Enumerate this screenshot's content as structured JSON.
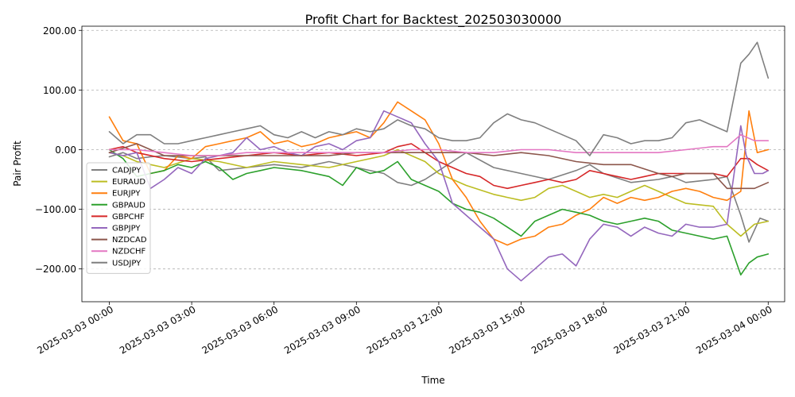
{
  "chart_data": {
    "type": "line",
    "title": "Profit Chart for Backtest_202503030000",
    "xlabel": "Time",
    "ylabel": "Pair Profit",
    "x_unit": "hours since 2025-03-03 00:00",
    "xlim": [
      -1.0,
      24.6
    ],
    "ylim": [
      -255,
      207
    ],
    "grid": "horizontal dashed",
    "legend_position": "lower-left",
    "xticks": [
      {
        "value": 0,
        "label": "2025-03-03 00:00"
      },
      {
        "value": 3,
        "label": "2025-03-03 03:00"
      },
      {
        "value": 6,
        "label": "2025-03-03 06:00"
      },
      {
        "value": 9,
        "label": "2025-03-03 09:00"
      },
      {
        "value": 12,
        "label": "2025-03-03 12:00"
      },
      {
        "value": 15,
        "label": "2025-03-03 15:00"
      },
      {
        "value": 18,
        "label": "2025-03-03 18:00"
      },
      {
        "value": 21,
        "label": "2025-03-03 21:00"
      },
      {
        "value": 24,
        "label": "2025-03-04 00:00"
      }
    ],
    "yticks": [
      {
        "value": -200,
        "label": "−200.00"
      },
      {
        "value": -100,
        "label": "−100.00"
      },
      {
        "value": 0,
        "label": "0.00"
      },
      {
        "value": 100,
        "label": "100.00"
      },
      {
        "value": 200,
        "label": "200.00"
      }
    ],
    "series": [
      {
        "name": "CADJPY",
        "color": "#7f7f7f",
        "x": [
          0,
          0.5,
          1,
          1.5,
          2,
          3,
          3.5,
          4,
          5,
          6,
          7,
          8,
          9,
          10,
          10.5,
          11,
          11.5,
          12,
          12.5,
          13,
          14,
          15,
          16,
          17,
          17.5,
          18,
          19,
          20,
          20.5,
          21,
          22,
          22.5,
          23,
          23.3,
          23.7,
          24
        ],
        "values": [
          -12,
          -5,
          -15,
          -12,
          -10,
          -15,
          -12,
          -35,
          -30,
          -25,
          -30,
          -20,
          -30,
          -40,
          -55,
          -60,
          -50,
          -35,
          -20,
          -5,
          -30,
          -40,
          -50,
          -35,
          -25,
          -40,
          -55,
          -50,
          -45,
          -55,
          -50,
          -45,
          -110,
          -155,
          -115,
          -120
        ]
      },
      {
        "name": "EURAUD",
        "color": "#bcbd22",
        "x": [
          0,
          0.5,
          1,
          1.5,
          2,
          3,
          4,
          5,
          6,
          7,
          8,
          9,
          10,
          10.5,
          11,
          11.5,
          12,
          12.5,
          13,
          14,
          14.5,
          15,
          15.5,
          16,
          16.5,
          17,
          17.5,
          18,
          18.5,
          19,
          19.5,
          20,
          20.5,
          21,
          22,
          22.5,
          23,
          23.5,
          24
        ],
        "values": [
          -5,
          -10,
          -20,
          -25,
          -30,
          -15,
          -20,
          -30,
          -20,
          -25,
          -30,
          -20,
          -10,
          0,
          -10,
          -20,
          -40,
          -50,
          -60,
          -75,
          -80,
          -85,
          -80,
          -65,
          -60,
          -70,
          -80,
          -75,
          -80,
          -70,
          -60,
          -70,
          -80,
          -90,
          -95,
          -125,
          -145,
          -125,
          -120
        ]
      },
      {
        "name": "EURJPY",
        "color": "#ff7f0e",
        "x": [
          0,
          0.5,
          1,
          1.5,
          2,
          2.5,
          3,
          3.5,
          4,
          4.5,
          5,
          5.5,
          6,
          6.5,
          7,
          7.5,
          8,
          8.5,
          9,
          9.5,
          10,
          10.5,
          11,
          11.5,
          12,
          12.5,
          13,
          13.5,
          14,
          14.5,
          15,
          15.5,
          16,
          16.5,
          17,
          17.5,
          18,
          18.5,
          19,
          19.5,
          20,
          20.5,
          21,
          21.5,
          22,
          22.5,
          23,
          23.3,
          23.6,
          24
        ],
        "values": [
          55,
          15,
          10,
          -40,
          -35,
          -10,
          -15,
          5,
          10,
          15,
          20,
          30,
          10,
          15,
          5,
          10,
          20,
          25,
          30,
          20,
          45,
          80,
          65,
          50,
          10,
          -50,
          -80,
          -120,
          -150,
          -160,
          -150,
          -145,
          -130,
          -125,
          -110,
          -100,
          -80,
          -90,
          -80,
          -85,
          -80,
          -70,
          -65,
          -70,
          -80,
          -85,
          -70,
          65,
          -5,
          0
        ]
      },
      {
        "name": "GBPAUD",
        "color": "#2ca02c",
        "x": [
          0,
          0.5,
          1,
          1.5,
          2,
          2.5,
          3,
          3.5,
          4,
          4.5,
          5,
          5.5,
          6,
          7,
          8,
          8.5,
          9,
          9.5,
          10,
          10.5,
          11,
          11.5,
          12,
          12.5,
          13,
          13.5,
          14,
          14.5,
          15,
          15.5,
          16,
          16.5,
          17,
          17.5,
          18,
          18.5,
          19,
          19.5,
          20,
          20.5,
          21,
          21.5,
          22,
          22.5,
          23,
          23.3,
          23.6,
          24
        ],
        "values": [
          0,
          -15,
          -45,
          -40,
          -35,
          -25,
          -30,
          -20,
          -30,
          -50,
          -40,
          -35,
          -30,
          -35,
          -45,
          -60,
          -30,
          -40,
          -35,
          -20,
          -50,
          -60,
          -70,
          -90,
          -100,
          -105,
          -115,
          -130,
          -145,
          -120,
          -110,
          -100,
          -105,
          -110,
          -120,
          -125,
          -120,
          -115,
          -120,
          -135,
          -140,
          -145,
          -150,
          -145,
          -210,
          -190,
          -180,
          -175
        ]
      },
      {
        "name": "GBPCHF",
        "color": "#d62728",
        "x": [
          0,
          0.5,
          1,
          2,
          3,
          4,
          5,
          6,
          7,
          8,
          9,
          10,
          10.5,
          11,
          11.5,
          12,
          12.5,
          13,
          13.5,
          14,
          14.5,
          15,
          15.5,
          16,
          16.5,
          17,
          17.5,
          18,
          18.5,
          19,
          19.5,
          20,
          20.5,
          21,
          22,
          22.5,
          23,
          23.3,
          23.6,
          24
        ],
        "values": [
          0,
          5,
          -5,
          -15,
          -20,
          -15,
          -10,
          -5,
          -10,
          -5,
          -10,
          -5,
          5,
          10,
          -5,
          -20,
          -30,
          -40,
          -45,
          -60,
          -65,
          -60,
          -55,
          -50,
          -55,
          -50,
          -35,
          -40,
          -45,
          -50,
          -45,
          -40,
          -40,
          -40,
          -40,
          -45,
          -15,
          -15,
          -25,
          -35
        ]
      },
      {
        "name": "GBPJPY",
        "color": "#9467bd",
        "x": [
          0,
          0.5,
          1,
          1.5,
          2,
          2.5,
          3,
          3.5,
          4,
          4.5,
          5,
          5.5,
          6,
          6.5,
          7,
          7.5,
          8,
          8.5,
          9,
          9.5,
          10,
          10.5,
          11,
          11.5,
          12,
          12.5,
          13,
          13.5,
          14,
          14.5,
          15,
          15.5,
          16,
          16.5,
          17,
          17.5,
          18,
          18.5,
          19,
          19.5,
          20,
          20.5,
          21,
          21.5,
          22,
          22.5,
          23,
          23.2,
          23.5,
          23.8,
          24
        ],
        "values": [
          -5,
          -10,
          -5,
          -65,
          -50,
          -30,
          -40,
          -15,
          -10,
          -5,
          20,
          0,
          5,
          -5,
          -10,
          5,
          10,
          0,
          15,
          20,
          65,
          55,
          45,
          10,
          -20,
          -90,
          -110,
          -130,
          -150,
          -200,
          -220,
          -200,
          -180,
          -175,
          -195,
          -150,
          -125,
          -130,
          -145,
          -130,
          -140,
          -145,
          -125,
          -130,
          -130,
          -125,
          40,
          -10,
          -40,
          -40,
          -35
        ]
      },
      {
        "name": "NZDCAD",
        "color": "#8c564b",
        "x": [
          0,
          1,
          2,
          3,
          4,
          5,
          6,
          7,
          8,
          9,
          10,
          11,
          12,
          13,
          14,
          15,
          16,
          17,
          18,
          19,
          20,
          20.5,
          21,
          22,
          22.5,
          23,
          23.5,
          24
        ],
        "values": [
          -5,
          10,
          -10,
          -10,
          -10,
          -10,
          -10,
          -10,
          -10,
          -5,
          -5,
          -5,
          -5,
          -5,
          -10,
          -5,
          -10,
          -20,
          -25,
          -25,
          -40,
          -45,
          -40,
          -40,
          -65,
          -65,
          -65,
          -55
        ]
      },
      {
        "name": "NZDCHF",
        "color": "#e377c2",
        "x": [
          0,
          1,
          2,
          3,
          4,
          5,
          6,
          7,
          8,
          9,
          10,
          11,
          12,
          13,
          14,
          15,
          16,
          17,
          18,
          19,
          20,
          21,
          22,
          22.5,
          23,
          23.5,
          24
        ],
        "values": [
          0,
          0,
          -5,
          -10,
          -10,
          -5,
          -5,
          -5,
          -5,
          -5,
          -5,
          0,
          0,
          -5,
          -5,
          0,
          0,
          -5,
          -5,
          -5,
          -5,
          0,
          5,
          5,
          25,
          15,
          15
        ]
      },
      {
        "name": "USDJPY",
        "color": "#7f7f7f",
        "x": [
          0,
          0.5,
          1,
          1.5,
          2,
          2.5,
          3,
          3.5,
          4,
          4.5,
          5,
          5.5,
          6,
          6.5,
          7,
          7.5,
          8,
          8.5,
          9,
          9.5,
          10,
          10.5,
          11,
          11.5,
          12,
          12.5,
          13,
          13.5,
          14,
          14.5,
          15,
          15.5,
          16,
          16.5,
          17,
          17.5,
          18,
          18.5,
          19,
          19.5,
          20,
          20.5,
          21,
          21.5,
          22,
          22.5,
          23,
          23.3,
          23.6,
          24
        ],
        "values": [
          30,
          10,
          25,
          25,
          10,
          10,
          15,
          20,
          25,
          30,
          35,
          40,
          25,
          20,
          30,
          20,
          30,
          25,
          35,
          30,
          35,
          50,
          40,
          35,
          20,
          15,
          15,
          20,
          45,
          60,
          50,
          45,
          35,
          25,
          15,
          -10,
          25,
          20,
          10,
          15,
          15,
          20,
          45,
          50,
          40,
          30,
          145,
          160,
          180,
          120
        ]
      }
    ]
  }
}
